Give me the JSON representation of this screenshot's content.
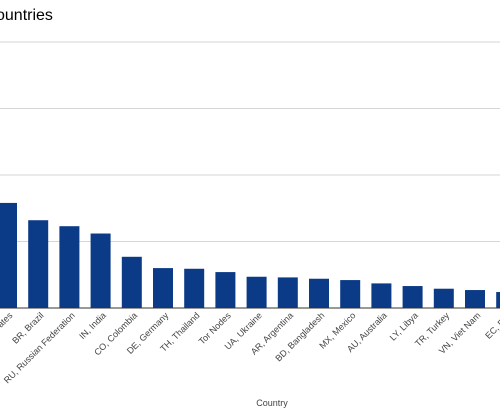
{
  "chart_data": {
    "type": "bar",
    "title": "ountries",
    "xlabel": "Country",
    "ylabel": "",
    "ylim": [
      0,
      400
    ],
    "grid": true,
    "legend": "none",
    "bar_color": "#0b3a86",
    "categories": [
      "ates",
      "BR, Brazil",
      "RU, Russian Federation",
      "IN, India",
      "CO, Colombia",
      "DE, Germany",
      "TH, Thailand",
      "Tor Nodes",
      "UA, Ukraine",
      "AR, Argentina",
      "BD, Bangladesh",
      "MX, Mexico",
      "AU, Australia",
      "LY, Libya",
      "TR, Turkey",
      "VN, Viet Nam",
      "EC, Ecu"
    ],
    "values": [
      158,
      132,
      123,
      112,
      77,
      60,
      59,
      54,
      47,
      46,
      44,
      42,
      37,
      33,
      29,
      27,
      24
    ]
  }
}
